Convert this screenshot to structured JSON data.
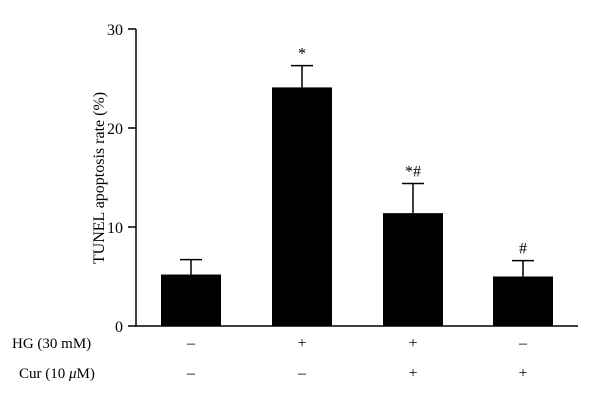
{
  "chart_data": {
    "type": "bar",
    "ylabel": "TUNEL apoptosis rate (%)",
    "ylim": [
      0,
      30
    ],
    "yticks": [
      0,
      10,
      20,
      30
    ],
    "grid": false,
    "bar_color": "#000000",
    "bars": [
      {
        "value": 5.2,
        "error": 1.5,
        "annotation": ""
      },
      {
        "value": 24.1,
        "error": 2.2,
        "annotation": "*"
      },
      {
        "value": 11.4,
        "error": 3.0,
        "annotation": "*#"
      },
      {
        "value": 5.0,
        "error": 1.6,
        "annotation": "#"
      }
    ],
    "conditions": [
      {
        "label": "HG (30 mM)",
        "values": [
          "–",
          "+",
          "+",
          "–"
        ]
      },
      {
        "label_prefix": "Cur (10 ",
        "label_unit": "μ",
        "label_suffix": "M)",
        "values": [
          "–",
          "–",
          "+",
          "+"
        ]
      }
    ]
  }
}
